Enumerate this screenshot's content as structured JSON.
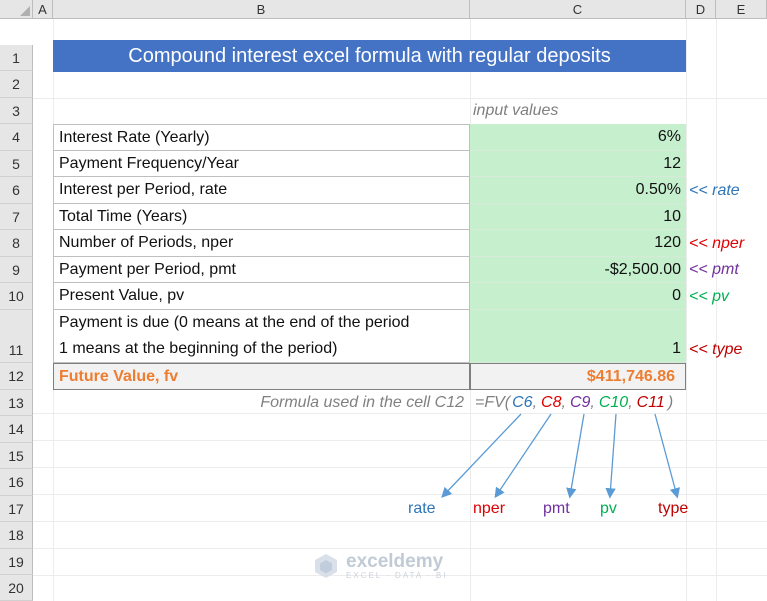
{
  "columns": [
    "A",
    "B",
    "C",
    "D",
    "E"
  ],
  "rows": [
    "1",
    "2",
    "3",
    "4",
    "5",
    "6",
    "7",
    "8",
    "9",
    "10",
    "11",
    "12",
    "13",
    "14",
    "15",
    "16",
    "17",
    "18",
    "19",
    "20"
  ],
  "title": "Compound interest excel formula with regular deposits",
  "input_header": "input values",
  "items": [
    {
      "label": "Interest Rate (Yearly)",
      "value": "6%",
      "note": ""
    },
    {
      "label": "Payment Frequency/Year",
      "value": "12",
      "note": ""
    },
    {
      "label": "Interest per Period, rate",
      "value": "0.50%",
      "note": "<< rate"
    },
    {
      "label": "Total Time (Years)",
      "value": "10",
      "note": ""
    },
    {
      "label": "Number of Periods, nper",
      "value": "120",
      "note": "<< nper"
    },
    {
      "label": "Payment per Period, pmt",
      "value": "-$2,500.00",
      "note": "<< pmt"
    },
    {
      "label": "Present Value, pv",
      "value": "0",
      "note": "<< pv"
    }
  ],
  "type_row": {
    "label_line1": "Payment is due (0 means at the end of the period",
    "label_line2": "1 means at the beginning of the period)",
    "value": "1",
    "note": "<< type"
  },
  "result": {
    "label": "Future Value, fv",
    "value": "$411,746.86"
  },
  "formula": {
    "caption": "Formula used in the cell C12",
    "prefix": "=FV(",
    "args": [
      "C6",
      "C8",
      "C9",
      "C10",
      "C11"
    ],
    "separator": ",",
    "suffix": ")"
  },
  "legend": [
    "rate",
    "nper",
    "pmt",
    "pv",
    "type"
  ],
  "colors": {
    "title_bg": "#4472c4",
    "input_bg": "#c6efce",
    "result_text": "#ed7d31",
    "rate": "#2e75b6",
    "nper": "#e00000",
    "pmt": "#7030a0",
    "pv": "#00b050",
    "type": "#c00000",
    "arrow": "#5b9bd5"
  },
  "watermark": {
    "name": "exceldemy",
    "tagline": "EXCEL · DATA · BI",
    "icon": "exceldemy-logo-icon"
  }
}
